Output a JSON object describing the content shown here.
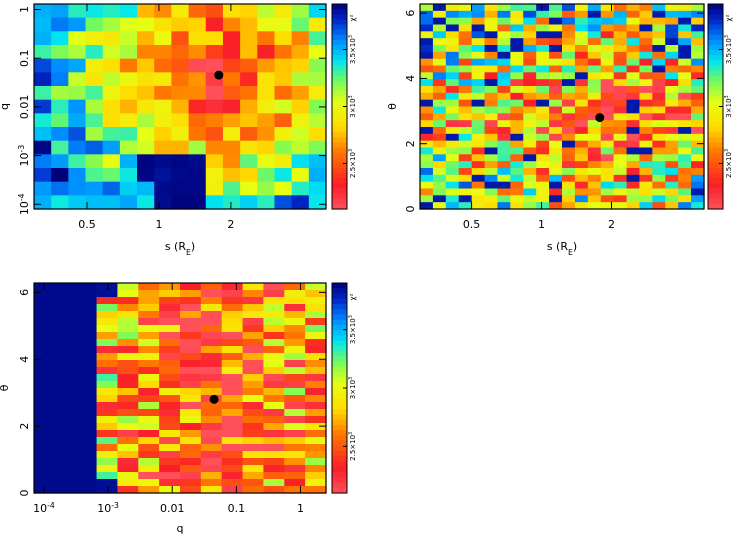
{
  "chart_data": [
    {
      "type": "heatmap",
      "xlabel": "s (R_E)",
      "ylabel": "q",
      "xscale": "log",
      "yscale": "log",
      "xlim": [
        0.3,
        5.0
      ],
      "ylim": [
        8e-05,
        1.3
      ],
      "xticks": [
        {
          "v": 0.5,
          "label": "0.5"
        },
        {
          "v": 1,
          "label": "1"
        },
        {
          "v": 2,
          "label": "2"
        }
      ],
      "yticks": [
        {
          "v": 1,
          "label": "1"
        },
        {
          "v": 0.1,
          "label": "0.1"
        },
        {
          "v": 0.01,
          "label": "0.01"
        },
        {
          "v": 0.001,
          "label": "10^-3"
        },
        {
          "v": 0.0001,
          "label": "10^-4"
        }
      ],
      "zlabel": "χ²",
      "colorbar_ticks": [
        {
          "v": 3500,
          "label": "3.5×10^3"
        },
        {
          "v": 3000,
          "label": "3×10^3"
        },
        {
          "v": 2500,
          "label": "2.5×10^3"
        }
      ],
      "zlim": [
        2100,
        3900
      ],
      "grid_x": 17,
      "grid_y": 15,
      "best_fit": {
        "x": 1.78,
        "y": 0.045
      },
      "seed": 11
    },
    {
      "type": "heatmap",
      "xlabel": "s (R_E)",
      "ylabel": "θ",
      "xscale": "log",
      "yscale": "linear",
      "xlim": [
        0.3,
        5.0
      ],
      "ylim": [
        0,
        6.28
      ],
      "xticks": [
        {
          "v": 0.5,
          "label": "0.5"
        },
        {
          "v": 1,
          "label": "1"
        },
        {
          "v": 2,
          "label": "2"
        }
      ],
      "yticks": [
        {
          "v": 0,
          "label": "0"
        },
        {
          "v": 2,
          "label": "2"
        },
        {
          "v": 4,
          "label": "4"
        },
        {
          "v": 6,
          "label": "6"
        }
      ],
      "zlabel": "χ²",
      "colorbar_ticks": [
        {
          "v": 3500,
          "label": "3.5×10^3"
        },
        {
          "v": 3000,
          "label": "3×10^3"
        },
        {
          "v": 2500,
          "label": "2.5×10^3"
        }
      ],
      "zlim": [
        2100,
        3900
      ],
      "grid_x": 22,
      "grid_y": 30,
      "best_fit": {
        "x": 1.78,
        "y": 2.8
      },
      "seed": 29
    },
    {
      "type": "heatmap",
      "xlabel": "q",
      "ylabel": "θ",
      "xscale": "log",
      "yscale": "linear",
      "xlim": [
        7e-05,
        2.5
      ],
      "ylim": [
        0,
        6.28
      ],
      "xticks": [
        {
          "v": 0.0001,
          "label": "10^-4"
        },
        {
          "v": 0.001,
          "label": "10^-3"
        },
        {
          "v": 0.01,
          "label": "0.01"
        },
        {
          "v": 0.1,
          "label": "0.1"
        },
        {
          "v": 1,
          "label": "1"
        }
      ],
      "yticks": [
        {
          "v": 0,
          "label": "0"
        },
        {
          "v": 2,
          "label": "2"
        },
        {
          "v": 4,
          "label": "4"
        },
        {
          "v": 6,
          "label": "6"
        }
      ],
      "zlabel": "χ²",
      "colorbar_ticks": [
        {
          "v": 3500,
          "label": "3.5×10^3"
        },
        {
          "v": 3000,
          "label": "3×10^3"
        },
        {
          "v": 2500,
          "label": "2.5×10^3"
        }
      ],
      "zlim": [
        2100,
        3900
      ],
      "grid_x": 14,
      "grid_y": 30,
      "best_fit": {
        "x": 0.045,
        "y": 2.8
      },
      "seed": 47
    }
  ]
}
